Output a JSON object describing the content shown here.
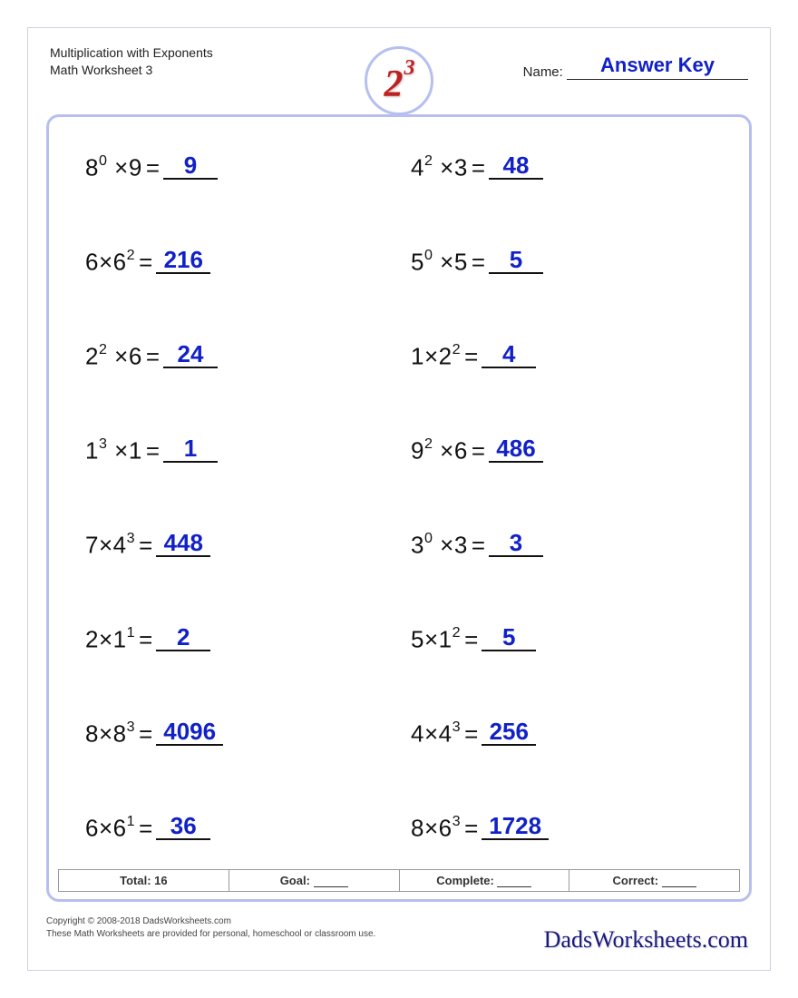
{
  "header": {
    "title_line1": "Multiplication with Exponents",
    "title_line2": "Math Worksheet 3",
    "name_label": "Name:",
    "answer_key": "Answer Key"
  },
  "badge": {
    "base": "2",
    "exp": "3"
  },
  "colors": {
    "border_accent": "#b7bff0",
    "answer_text": "#1121c7",
    "badge_text": "#c02020"
  },
  "problems": [
    {
      "left": {
        "a": "8",
        "a_exp": "0",
        "op": "×",
        "b": "9",
        "b_exp": ""
      },
      "answer": "9"
    },
    {
      "left": {
        "a": "4",
        "a_exp": "2",
        "op": "×",
        "b": "3",
        "b_exp": ""
      },
      "answer": "48"
    },
    {
      "left": {
        "a": "6",
        "a_exp": "",
        "op": "×",
        "b": "6",
        "b_exp": "2"
      },
      "answer": "216"
    },
    {
      "left": {
        "a": "5",
        "a_exp": "0",
        "op": "×",
        "b": "5",
        "b_exp": ""
      },
      "answer": "5"
    },
    {
      "left": {
        "a": "2",
        "a_exp": "2",
        "op": "×",
        "b": "6",
        "b_exp": ""
      },
      "answer": "24"
    },
    {
      "left": {
        "a": "1",
        "a_exp": "",
        "op": "×",
        "b": "2",
        "b_exp": "2"
      },
      "answer": "4"
    },
    {
      "left": {
        "a": "1",
        "a_exp": "3",
        "op": "×",
        "b": "1",
        "b_exp": ""
      },
      "answer": "1"
    },
    {
      "left": {
        "a": "9",
        "a_exp": "2",
        "op": "×",
        "b": "6",
        "b_exp": ""
      },
      "answer": "486"
    },
    {
      "left": {
        "a": "7",
        "a_exp": "",
        "op": "×",
        "b": "4",
        "b_exp": "3"
      },
      "answer": "448"
    },
    {
      "left": {
        "a": "3",
        "a_exp": "0",
        "op": "×",
        "b": "3",
        "b_exp": ""
      },
      "answer": "3"
    },
    {
      "left": {
        "a": "2",
        "a_exp": "",
        "op": "×",
        "b": "1",
        "b_exp": "1"
      },
      "answer": "2"
    },
    {
      "left": {
        "a": "5",
        "a_exp": "",
        "op": "×",
        "b": "1",
        "b_exp": "2"
      },
      "answer": "5"
    },
    {
      "left": {
        "a": "8",
        "a_exp": "",
        "op": "×",
        "b": "8",
        "b_exp": "3"
      },
      "answer": "4096"
    },
    {
      "left": {
        "a": "4",
        "a_exp": "",
        "op": "×",
        "b": "4",
        "b_exp": "3"
      },
      "answer": "256"
    },
    {
      "left": {
        "a": "6",
        "a_exp": "",
        "op": "×",
        "b": "6",
        "b_exp": "1"
      },
      "answer": "36"
    },
    {
      "left": {
        "a": "8",
        "a_exp": "",
        "op": "×",
        "b": "6",
        "b_exp": "3"
      },
      "answer": "1728"
    }
  ],
  "score": {
    "total_label": "Total:",
    "total_value": "16",
    "goal_label": "Goal:",
    "complete_label": "Complete:",
    "correct_label": "Correct:"
  },
  "footer": {
    "copyright": "Copyright © 2008-2018 DadsWorksheets.com",
    "note": "These Math Worksheets are provided for personal, homeschool or classroom use.",
    "site": "DadsWorksheets.com"
  }
}
